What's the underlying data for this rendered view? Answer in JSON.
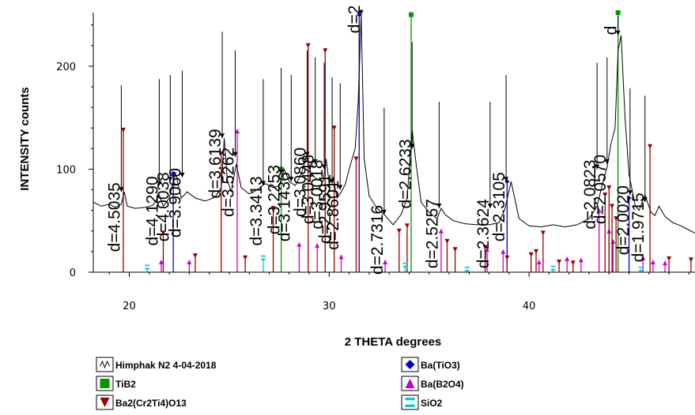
{
  "chart_data": {
    "type": "line",
    "xlabel": "2 THETA degrees",
    "ylabel": "INTENSITY counts",
    "xlim": [
      18.2,
      48.3
    ],
    "ylim": [
      0,
      252
    ],
    "x_ticks": [
      20,
      30,
      40
    ],
    "y_ticks": [
      0,
      100,
      200
    ],
    "grid": false,
    "legend_position": "bottom",
    "legend": [
      {
        "label": "Himphak N2 4-04-2018",
        "color": "#000000",
        "symbol": "line"
      },
      {
        "label": "Ba(TiO3)",
        "color": "#0000cc",
        "symbol": "diamond"
      },
      {
        "label": "TiB2",
        "color": "#009900",
        "symbol": "square"
      },
      {
        "label": "Ba(B2O4)",
        "color": "#cc00cc",
        "symbol": "triangle-up"
      },
      {
        "label": "Ba2(Cr2Ti4)O13",
        "color": "#990000",
        "symbol": "triangle-down"
      },
      {
        "label": "SiO2",
        "color": "#00cccc",
        "symbol": "hline"
      }
    ],
    "pattern": {
      "name": "Himphak N2 4-04-2018",
      "x": [
        18.2,
        18.6,
        19.0,
        19.3,
        19.6,
        19.75,
        19.9,
        20.3,
        20.8,
        21.2,
        21.5,
        21.7,
        22.0,
        22.3,
        22.6,
        22.9,
        23.3,
        23.8,
        24.3,
        24.6,
        24.75,
        24.9,
        25.1,
        25.35,
        25.6,
        26.0,
        26.4,
        26.8,
        27.2,
        27.5,
        27.75,
        28.0,
        28.3,
        28.6,
        28.85,
        29.1,
        29.4,
        29.7,
        29.85,
        30.0,
        30.2,
        30.4,
        30.6,
        30.8,
        31.0,
        31.3,
        31.45,
        31.6,
        31.75,
        32.0,
        32.4,
        32.8,
        33.2,
        33.6,
        33.9,
        34.15,
        34.35,
        34.6,
        35.0,
        35.4,
        35.6,
        35.8,
        36.2,
        36.8,
        37.4,
        38.0,
        38.5,
        38.8,
        39.1,
        39.5,
        40.0,
        40.6,
        41.2,
        41.8,
        42.4,
        43.0,
        43.4,
        43.7,
        43.9,
        44.1,
        44.3,
        44.45,
        44.6,
        44.8,
        45.0,
        45.3,
        45.5,
        45.8,
        46.1,
        46.3,
        46.5,
        46.8,
        47.2,
        47.6,
        48.0,
        48.3
      ],
      "y": [
        68,
        64,
        66,
        63,
        66,
        78,
        64,
        62,
        63,
        65,
        75,
        64,
        72,
        97,
        72,
        78,
        72,
        69,
        73,
        82,
        130,
        90,
        78,
        105,
        82,
        76,
        80,
        86,
        82,
        84,
        100,
        88,
        84,
        95,
        112,
        95,
        90,
        88,
        110,
        86,
        92,
        72,
        78,
        85,
        100,
        120,
        165,
        250,
        110,
        74,
        62,
        55,
        46,
        56,
        72,
        138,
        105,
        68,
        58,
        52,
        62,
        56,
        50,
        47,
        46,
        46,
        48,
        62,
        88,
        52,
        45,
        44,
        46,
        44,
        46,
        52,
        64,
        88,
        102,
        125,
        140,
        215,
        230,
        150,
        95,
        65,
        60,
        75,
        58,
        55,
        64,
        54,
        48,
        45,
        41,
        38
      ]
    },
    "markers": [
      {
        "x": 19.6,
        "y": 78,
        "label": "d=4.5035"
      },
      {
        "x": 21.5,
        "y": 84,
        "label": "d=4.1290"
      },
      {
        "x": 22.05,
        "y": 88,
        "label": "d=4.0038"
      },
      {
        "x": 22.65,
        "y": 92,
        "label": "d=3.9060"
      },
      {
        "x": 24.65,
        "y": 130,
        "label": "d=3.6139"
      },
      {
        "x": 25.3,
        "y": 112,
        "label": "d=3.5262"
      },
      {
        "x": 26.7,
        "y": 84,
        "label": "d=3.3413"
      },
      {
        "x": 27.6,
        "y": 95,
        "label": "d=3.2253"
      },
      {
        "x": 28.1,
        "y": 88,
        "label": "d=3.1436"
      },
      {
        "x": 28.9,
        "y": 112,
        "label": "d=3.0860"
      },
      {
        "x": 29.3,
        "y": 105,
        "label": "d=3.0448"
      },
      {
        "x": 29.75,
        "y": 100,
        "label": "d=3.0018"
      },
      {
        "x": 30.15,
        "y": 86,
        "label": "d=2.9591"
      },
      {
        "x": 30.55,
        "y": 80,
        "label": "d=2.8601"
      },
      {
        "x": 31.6,
        "y": 250,
        "label": "d=2"
      },
      {
        "x": 32.75,
        "y": 56,
        "label": "d=2.7316"
      },
      {
        "x": 34.15,
        "y": 120,
        "label": "d=2.6233"
      },
      {
        "x": 35.5,
        "y": 62,
        "label": "d=2.5257"
      },
      {
        "x": 38.05,
        "y": 62,
        "label": "d=2.3624"
      },
      {
        "x": 38.85,
        "y": 88,
        "label": "d=2.3105"
      },
      {
        "x": 43.4,
        "y": 100,
        "label": "d=2.0823"
      },
      {
        "x": 43.9,
        "y": 105,
        "label": "d=2.0570"
      },
      {
        "x": 44.45,
        "y": 230,
        "label": "d"
      },
      {
        "x": 45.05,
        "y": 75,
        "label": "d=2.0020"
      },
      {
        "x": 45.8,
        "y": 68,
        "label": "d=1.9715"
      }
    ],
    "reference_lines": [
      {
        "phase": "Ba(TiO3)",
        "x": [
          22.2,
          31.5,
          38.9,
          45.0
        ],
        "y": [
          96,
          250,
          88,
          72
        ]
      },
      {
        "phase": "TiB2",
        "x": [
          27.6,
          34.1,
          44.45
        ],
        "y": [
          100,
          250,
          252
        ]
      },
      {
        "phase": "Ba(B2O4)",
        "x": [
          21.6,
          23.0,
          25.4,
          28.5,
          29.4,
          30.6,
          32.8,
          35.6,
          37.9,
          38.7,
          40.5,
          41.9,
          42.6,
          43.5,
          44.0,
          44.2,
          45.7,
          46.2,
          46.8
        ],
        "y": [
          10,
          10,
          137,
          27,
          26,
          15,
          10,
          40,
          22,
          20,
          10,
          13,
          12,
          60,
          40,
          30,
          14,
          10,
          9
        ]
      },
      {
        "phase": "Ba2(Cr2Ti4)O13",
        "x": [
          19.7,
          21.7,
          23.3,
          24.6,
          25.8,
          27.2,
          28.95,
          29.8,
          30.25,
          31.35,
          33.5,
          33.9,
          35.9,
          36.3,
          37.8,
          38.9,
          40.1,
          40.35,
          40.7,
          41.5,
          42.2,
          43.8,
          44.0,
          44.15,
          44.35,
          46.05,
          47.0,
          48.1
        ],
        "y": [
          138,
          38,
          16,
          115,
          14,
          62,
          220,
          215,
          140,
          110,
          40,
          45,
          30,
          22,
          24,
          14,
          17,
          20,
          38,
          10,
          9,
          75,
          82,
          64,
          52,
          122,
          13,
          12
        ]
      },
      {
        "phase": "SiO2",
        "x": [
          20.9,
          26.7,
          33.8,
          36.9,
          41.2,
          45.6
        ],
        "y": [
          5,
          14,
          7,
          3,
          4,
          3
        ]
      }
    ]
  }
}
